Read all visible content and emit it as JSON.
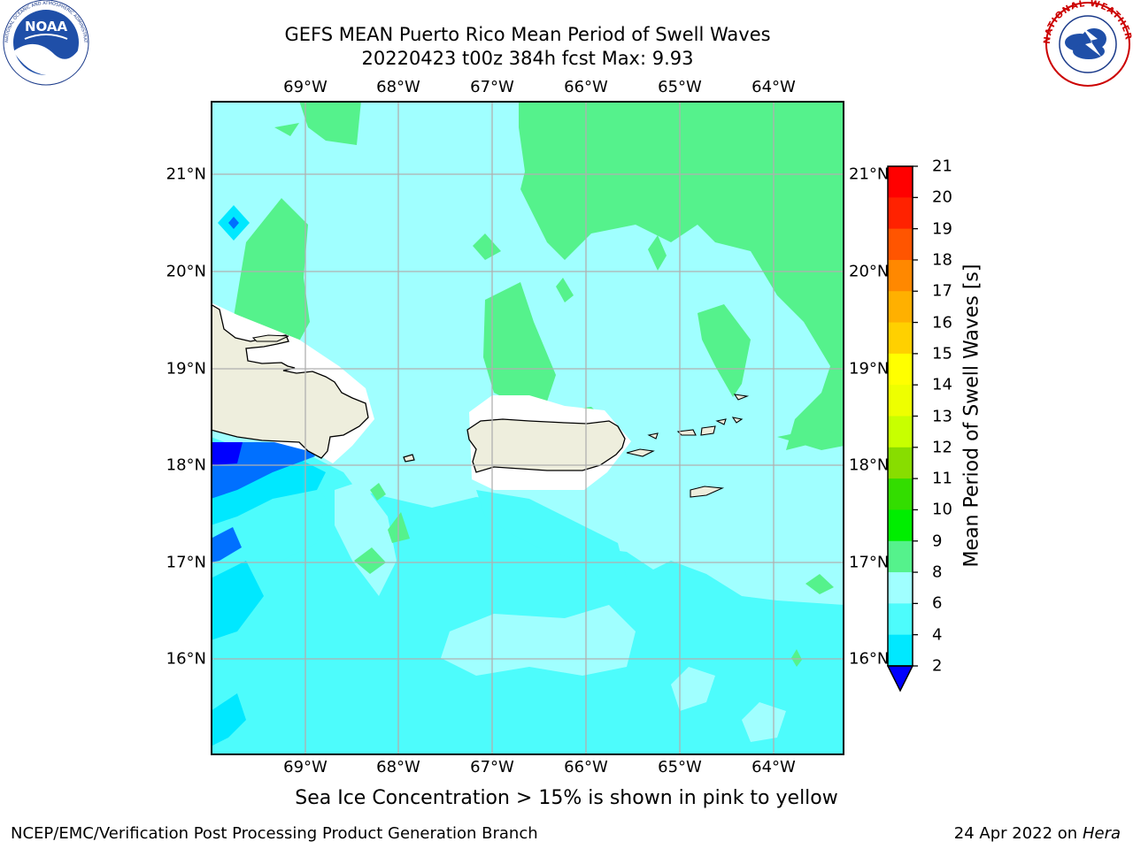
{
  "header": {
    "title_line1": "GEFS MEAN Puerto Rico Mean Period of Swell Waves",
    "title_line2": "20220423 t00z 384h fcst   Max: 9.93"
  },
  "map": {
    "lon_labels": [
      "69°W",
      "68°W",
      "67°W",
      "66°W",
      "65°W",
      "64°W"
    ],
    "lat_labels": [
      "21°N",
      "20°N",
      "19°N",
      "18°N",
      "17°N",
      "16°N"
    ],
    "land_color": "#eeeedd",
    "grid_color": "#b0b0b0"
  },
  "colorbar": {
    "label": "Mean Period of Swell Waves [s]",
    "ticks": [
      "2",
      "4",
      "6",
      "8",
      "9",
      "10",
      "11",
      "12",
      "13",
      "14",
      "15",
      "16",
      "17",
      "18",
      "19",
      "20",
      "21"
    ],
    "colors": [
      "#0000ff",
      "#0070ff",
      "#00e8ff",
      "#4dfcfc",
      "#a0ffff",
      "#55f28c",
      "#00ee00",
      "#33dd00",
      "#88dd00",
      "#c8ff00",
      "#eeff00",
      "#ffff00",
      "#ffd000",
      "#ffb000",
      "#ff8800",
      "#ff5500",
      "#ff2200",
      "#ff0000"
    ]
  },
  "note": "Sea Ice Concentration > 15% is shown in pink to yellow",
  "footer": {
    "left": "NCEP/EMC/Verification Post Processing Product Generation Branch",
    "date": "24 Apr 2022 on ",
    "host": "Hera"
  },
  "logos": {
    "left": "NOAA",
    "left_ring_text": "NATIONAL OCEANIC AND ATMOSPHERIC ADMINISTRATION · U.S. DEPARTMENT OF COMMERCE",
    "right_ring_text": "NATIONAL WEATHER SERVICE"
  }
}
